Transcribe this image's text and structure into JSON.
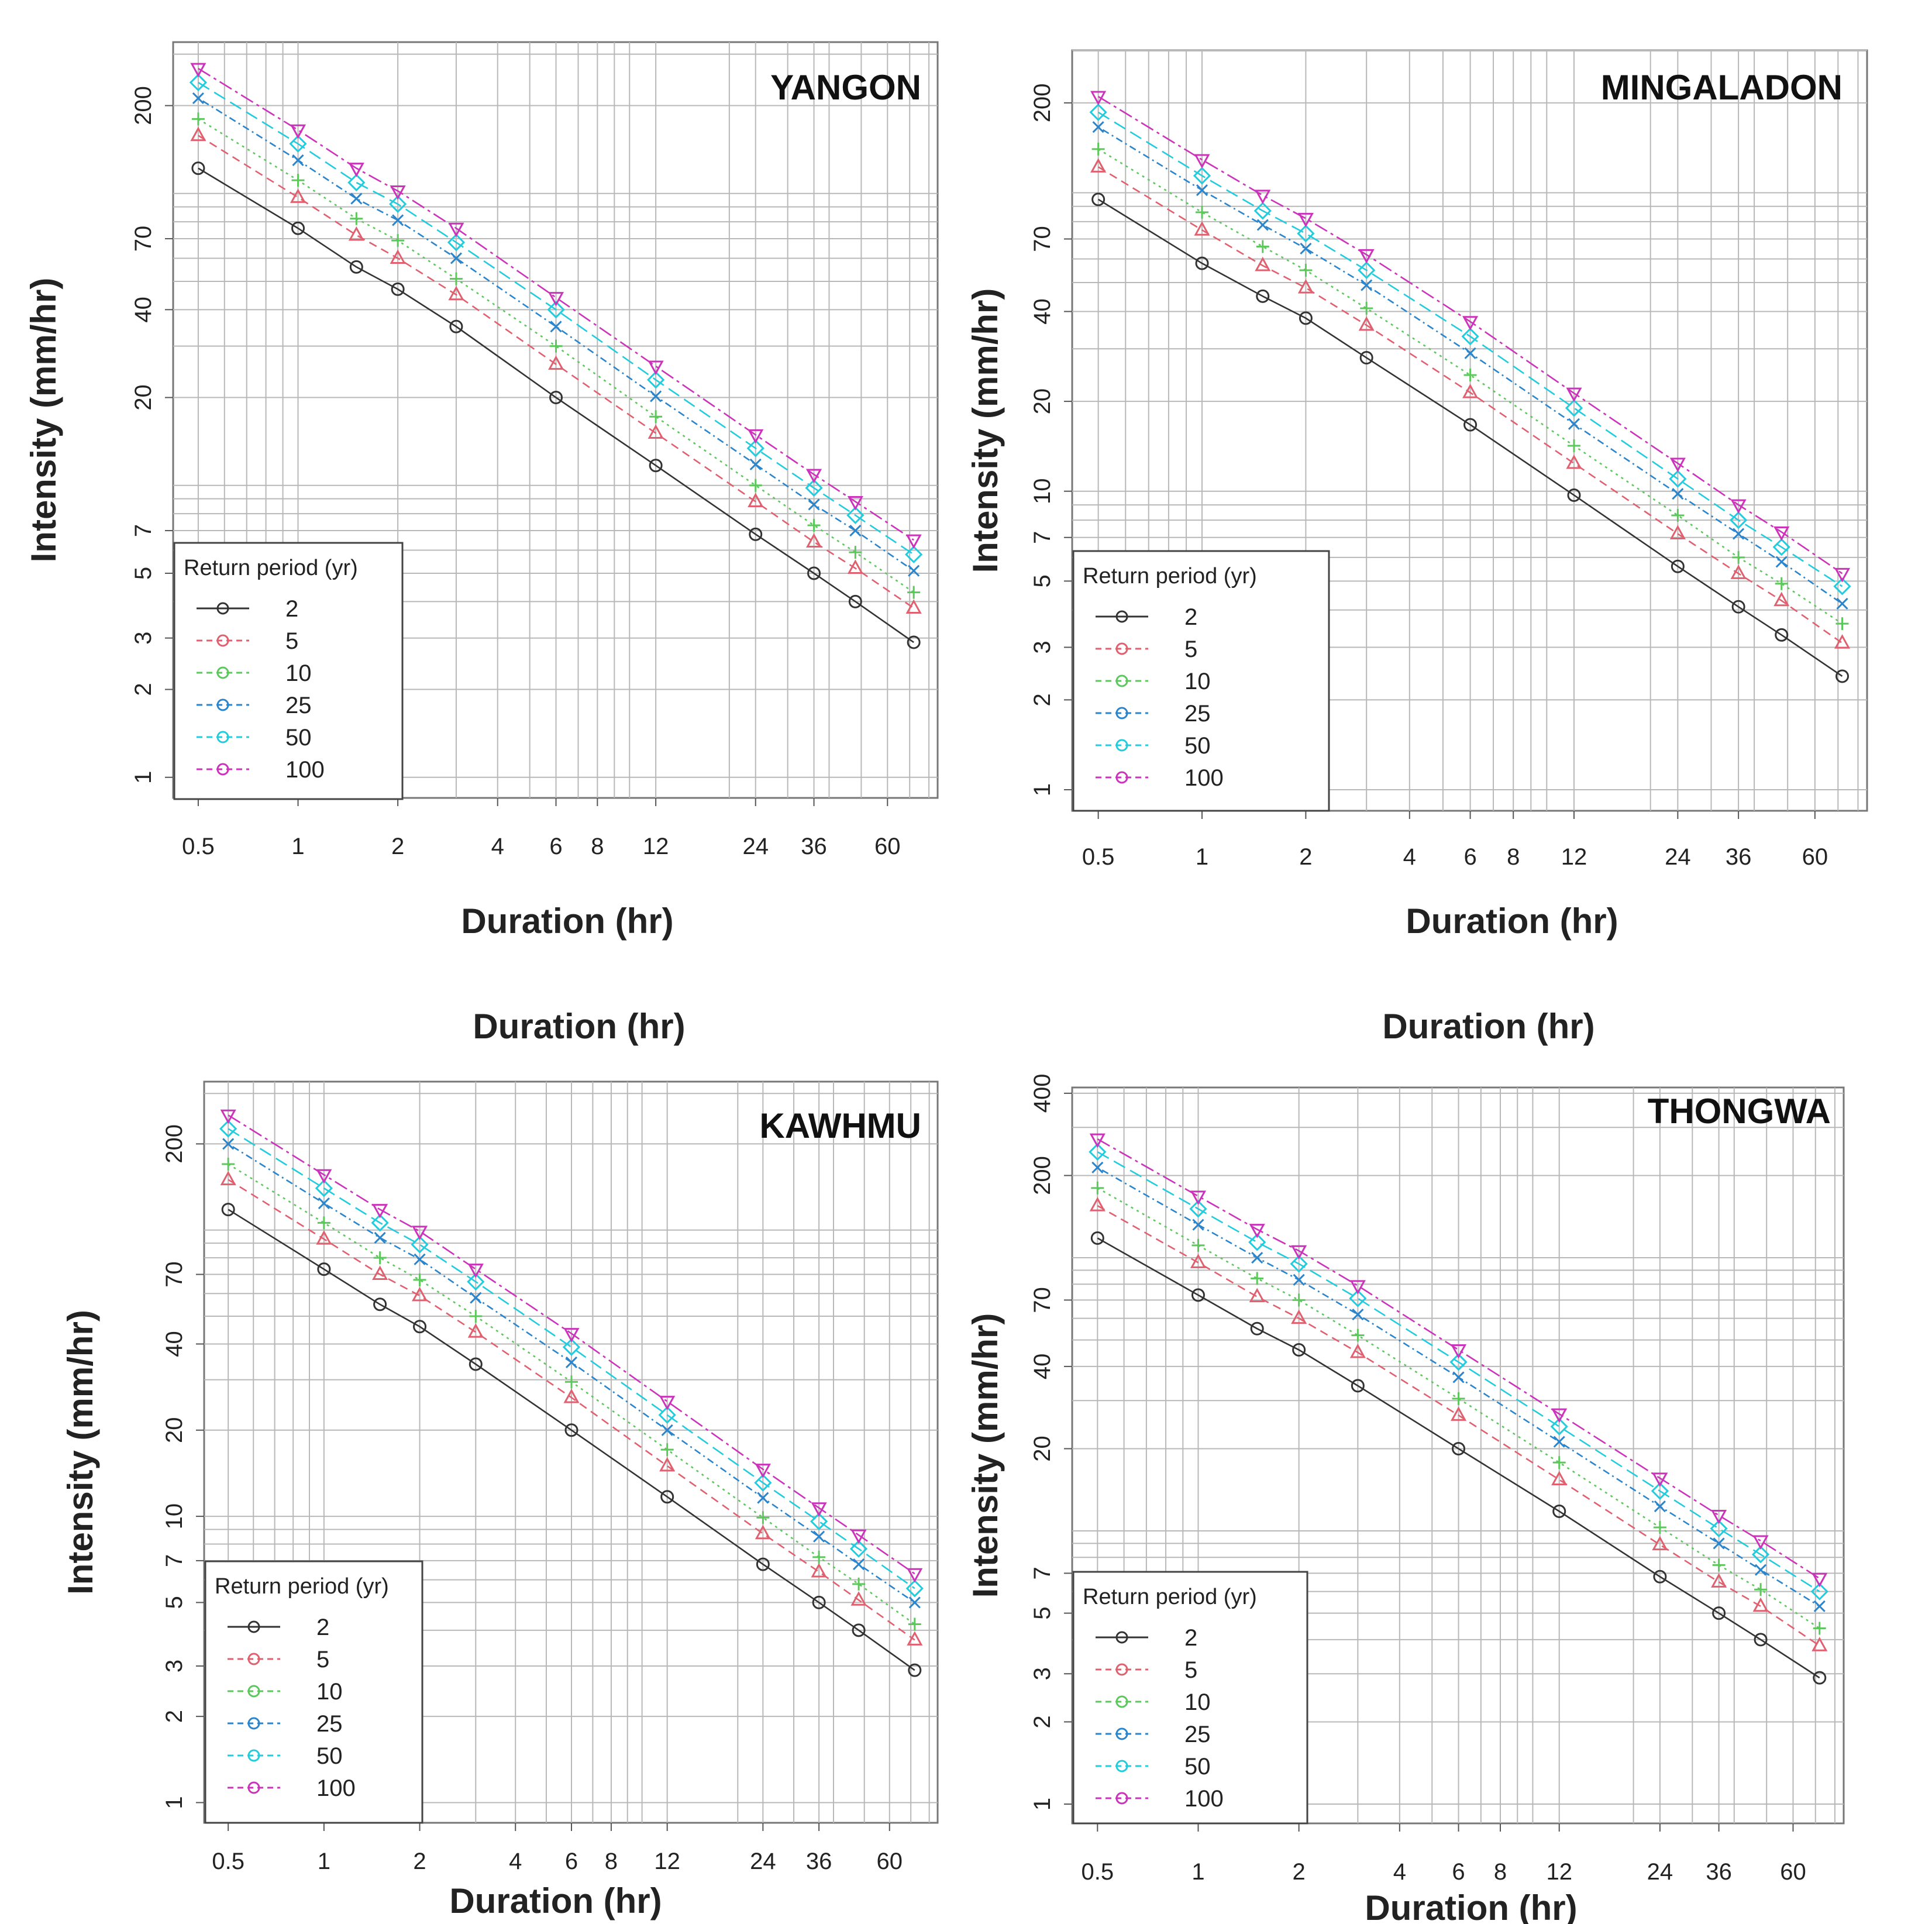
{
  "figure": {
    "stray_labels": [
      "Duration (hr)",
      "Duration (hr)"
    ]
  },
  "colors": {
    "2": "#333333",
    "5": "#e06070",
    "10": "#5cc85c",
    "25": "#2a85cc",
    "50": "#22ccdd",
    "100": "#cc33bb"
  },
  "chart_data": [
    {
      "type": "line",
      "title": "YANGON",
      "xlabel": "Duration (hr)",
      "ylabel": "Intensity (mm/hr)",
      "xscale": "log",
      "yscale": "log",
      "xlim": [
        0.42,
        85
      ],
      "ylim": [
        0.85,
        330
      ],
      "x": [
        0.5,
        1,
        1.5,
        2,
        3,
        6,
        12,
        24,
        36,
        48,
        72
      ],
      "x_ticks": [
        0.5,
        1,
        2,
        4,
        6,
        8,
        12,
        24,
        36,
        60
      ],
      "x_tick_labels": [
        "0.5",
        "1",
        "2",
        "4",
        "6",
        "8",
        "12",
        "24",
        "36",
        "60"
      ],
      "y_ticks": [
        1,
        2,
        3,
        5,
        7,
        20,
        40,
        70,
        200
      ],
      "y_tick_labels": [
        "1",
        "2",
        "3",
        "5",
        "7",
        "20",
        "40",
        "70",
        "200"
      ],
      "legend_title": "Return period (yr)",
      "legend_position": "bottom-left",
      "series": [
        {
          "name": "2",
          "values": [
            122,
            76,
            56,
            47,
            35,
            20,
            11.7,
            6.8,
            5.0,
            4.0,
            2.9
          ]
        },
        {
          "name": "5",
          "values": [
            158,
            97,
            72,
            60,
            45,
            26,
            15.1,
            8.8,
            6.4,
            5.2,
            3.8
          ]
        },
        {
          "name": "10",
          "values": [
            180,
            111,
            82,
            69,
            51,
            30,
            17.2,
            10.0,
            7.3,
            5.9,
            4.3
          ]
        },
        {
          "name": "25",
          "values": [
            212,
            130,
            96,
            81,
            60,
            35,
            20.2,
            11.8,
            8.6,
            7.0,
            5.1
          ]
        },
        {
          "name": "50",
          "values": [
            240,
            148,
            109,
            92,
            68,
            40,
            23,
            13.4,
            9.8,
            7.9,
            5.8
          ]
        },
        {
          "name": "100",
          "values": [
            268,
            165,
            122,
            102,
            76,
            44,
            25.6,
            14.9,
            10.9,
            8.8,
            6.5
          ]
        }
      ]
    },
    {
      "type": "line",
      "title": "MINGALADON",
      "xlabel": "Duration (hr)",
      "ylabel": "Intensity (mm/hr)",
      "xscale": "log",
      "yscale": "log",
      "xlim": [
        0.42,
        85
      ],
      "ylim": [
        0.85,
        300
      ],
      "x": [
        0.5,
        1,
        1.5,
        2,
        3,
        6,
        12,
        24,
        36,
        48,
        72
      ],
      "x_ticks": [
        0.5,
        1,
        2,
        4,
        6,
        8,
        12,
        24,
        36,
        60
      ],
      "x_tick_labels": [
        "0.5",
        "1",
        "2",
        "4",
        "6",
        "8",
        "12",
        "24",
        "36",
        "60"
      ],
      "y_ticks": [
        1,
        2,
        3,
        5,
        7,
        10,
        20,
        40,
        70,
        200
      ],
      "y_tick_labels": [
        "1",
        "2",
        "3",
        "5",
        "7",
        "10",
        "20",
        "40",
        "70",
        "200"
      ],
      "legend_title": "Return period (yr)",
      "legend_position": "bottom-left",
      "series": [
        {
          "name": "2",
          "values": [
            95,
            58,
            45,
            38,
            28,
            16.7,
            9.7,
            5.6,
            4.1,
            3.3,
            2.4
          ]
        },
        {
          "name": "5",
          "values": [
            122,
            75,
            57,
            48,
            36,
            21.4,
            12.4,
            7.2,
            5.3,
            4.3,
            3.1
          ]
        },
        {
          "name": "10",
          "values": [
            140,
            86,
            66,
            55,
            41,
            24.5,
            14.2,
            8.3,
            6.0,
            4.9,
            3.6
          ]
        },
        {
          "name": "25",
          "values": [
            166,
            102,
            78,
            65,
            49,
            29,
            16.8,
            9.8,
            7.2,
            5.8,
            4.2
          ]
        },
        {
          "name": "50",
          "values": [
            186,
            114,
            87,
            73,
            55,
            33,
            19,
            11,
            8.0,
            6.5,
            4.8
          ]
        },
        {
          "name": "100",
          "values": [
            210,
            129,
            98,
            82,
            62,
            37,
            21.3,
            12.4,
            9.0,
            7.3,
            5.3
          ]
        }
      ]
    },
    {
      "type": "line",
      "title": "KAWHMU",
      "xlabel": "Duration (hr)",
      "ylabel": "Intensity (mm/hr)",
      "xscale": "log",
      "yscale": "log",
      "xlim": [
        0.42,
        85
      ],
      "ylim": [
        0.85,
        330
      ],
      "x": [
        0.5,
        1,
        1.5,
        2,
        3,
        6,
        12,
        24,
        36,
        48,
        72
      ],
      "x_ticks": [
        0.5,
        1,
        2,
        4,
        6,
        8,
        12,
        24,
        36,
        60
      ],
      "x_tick_labels": [
        "0.5",
        "1",
        "2",
        "4",
        "6",
        "8",
        "12",
        "24",
        "36",
        "60"
      ],
      "y_ticks": [
        1,
        2,
        3,
        5,
        7,
        10,
        20,
        40,
        70,
        200
      ],
      "y_tick_labels": [
        "1",
        "2",
        "3",
        "5",
        "7",
        "10",
        "20",
        "40",
        "70",
        "200"
      ],
      "legend_title": "Return period (yr)",
      "legend_position": "bottom-left",
      "series": [
        {
          "name": "2",
          "values": [
            118,
            73,
            55,
            46,
            34,
            20,
            11.7,
            6.8,
            5.0,
            4.0,
            2.9
          ]
        },
        {
          "name": "5",
          "values": [
            150,
            93,
            70,
            59,
            44,
            26,
            15.0,
            8.7,
            6.4,
            5.1,
            3.7
          ]
        },
        {
          "name": "10",
          "values": [
            170,
            106,
            80,
            67,
            50,
            29.5,
            17.1,
            9.9,
            7.2,
            5.8,
            4.2
          ]
        },
        {
          "name": "25",
          "values": [
            200,
            124,
            94,
            79,
            58,
            34.5,
            20,
            11.6,
            8.5,
            6.8,
            5.0
          ]
        },
        {
          "name": "50",
          "values": [
            226,
            140,
            106,
            89,
            66,
            39,
            22.6,
            13.1,
            9.6,
            7.7,
            5.6
          ]
        },
        {
          "name": "100",
          "values": [
            252,
            156,
            118,
            99,
            73,
            43.5,
            25.2,
            14.6,
            10.7,
            8.6,
            6.3
          ]
        }
      ]
    },
    {
      "type": "line",
      "title": "THONGWA",
      "xlabel": "Duration (hr)",
      "ylabel": "Intensity (mm/hr)",
      "xscale": "log",
      "yscale": "log",
      "xlim": [
        0.42,
        85
      ],
      "ylim": [
        0.85,
        420
      ],
      "x": [
        0.5,
        1,
        1.5,
        2,
        3,
        6,
        12,
        24,
        36,
        48,
        72
      ],
      "x_ticks": [
        0.5,
        1,
        2,
        4,
        6,
        8,
        12,
        24,
        36,
        60
      ],
      "x_tick_labels": [
        "0.5",
        "1",
        "2",
        "4",
        "6",
        "8",
        "12",
        "24",
        "36",
        "60"
      ],
      "y_ticks": [
        1,
        2,
        3,
        5,
        7,
        20,
        40,
        70,
        200,
        400
      ],
      "y_tick_labels": [
        "1",
        "2",
        "3",
        "5",
        "7",
        "20",
        "40",
        "70",
        "200",
        "400"
      ],
      "legend_title": "Return period (yr)",
      "legend_position": "bottom-left",
      "series": [
        {
          "name": "2",
          "values": [
            118,
            73,
            55,
            46,
            34,
            20,
            11.8,
            6.8,
            5.0,
            4.0,
            2.9
          ]
        },
        {
          "name": "5",
          "values": [
            155,
            96,
            72,
            60,
            45,
            26.5,
            15.4,
            8.9,
            6.5,
            5.3,
            3.8
          ]
        },
        {
          "name": "10",
          "values": [
            180,
            111,
            84,
            70,
            52,
            30.5,
            17.8,
            10.3,
            7.5,
            6.1,
            4.4
          ]
        },
        {
          "name": "25",
          "values": [
            214,
            132,
            100,
            83,
            62,
            36.5,
            21.2,
            12.3,
            9.0,
            7.2,
            5.3
          ]
        },
        {
          "name": "50",
          "values": [
            244,
            151,
            114,
            95,
            71,
            41.5,
            24.1,
            14.0,
            10.2,
            8.2,
            6.0
          ]
        },
        {
          "name": "100",
          "values": [
            272,
            168,
            127,
            106,
            79,
            46,
            26.8,
            15.6,
            11.4,
            9.2,
            6.7
          ]
        }
      ]
    }
  ]
}
